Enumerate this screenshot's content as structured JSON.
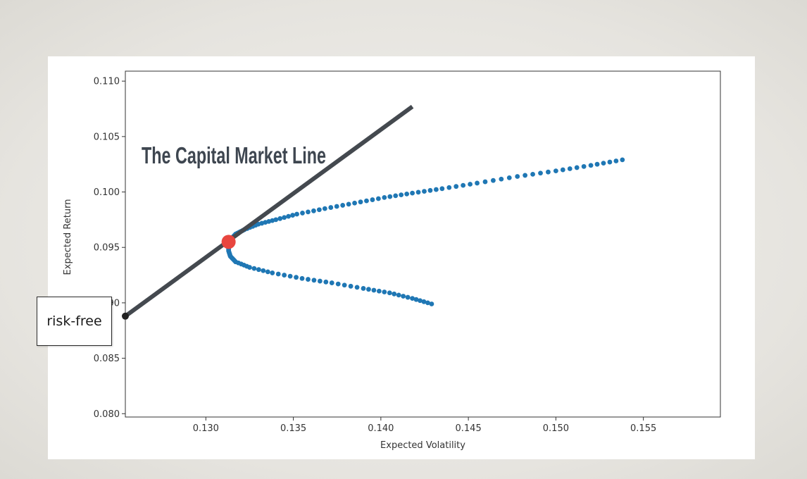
{
  "annotation": {
    "title": "The Capital Market Line",
    "riskfree_label": "risk-free"
  },
  "colors": {
    "frontier": "#1f77b4",
    "cml_line": "#44494f",
    "tangency": "#e8463f",
    "riskfree_point": "#222222"
  },
  "chart_data": {
    "type": "scatter",
    "xlabel": "Expected Volatility",
    "ylabel": "Expected Return",
    "xlim": [
      0.1254,
      0.1594
    ],
    "ylim": [
      0.0797,
      0.1109
    ],
    "xticks": [
      "0.130",
      "0.135",
      "0.140",
      "0.145",
      "0.150",
      "0.155"
    ],
    "yticks": [
      "0.080",
      "0.085",
      "0.090",
      "0.095",
      "0.100",
      "0.105",
      "0.110"
    ],
    "series": [
      {
        "kind": "efficient-frontier",
        "points": [
          [
            0.1313,
            0.0952
          ],
          [
            0.1314,
            0.0957
          ],
          [
            0.1317,
            0.0962
          ],
          [
            0.1322,
            0.0966
          ],
          [
            0.133,
            0.0971
          ],
          [
            0.134,
            0.0975
          ],
          [
            0.1352,
            0.098
          ],
          [
            0.1368,
            0.0985
          ],
          [
            0.1385,
            0.099
          ],
          [
            0.1402,
            0.0995
          ],
          [
            0.1418,
            0.0999
          ],
          [
            0.1435,
            0.1003
          ],
          [
            0.1455,
            0.1008
          ],
          [
            0.1478,
            0.1014
          ],
          [
            0.15,
            0.1019
          ],
          [
            0.152,
            0.1024
          ],
          [
            0.1538,
            0.1029
          ],
          [
            0.1313,
            0.0947
          ],
          [
            0.1314,
            0.0942
          ],
          [
            0.1317,
            0.0937
          ],
          [
            0.1325,
            0.0932
          ],
          [
            0.1338,
            0.0927
          ],
          [
            0.1355,
            0.0922
          ],
          [
            0.1372,
            0.0918
          ],
          [
            0.139,
            0.0913
          ],
          [
            0.1405,
            0.0909
          ],
          [
            0.1418,
            0.0904
          ],
          [
            0.1429,
            0.0899
          ]
        ]
      },
      {
        "kind": "capital-market-line",
        "points": [
          [
            0.1254,
            0.0888
          ],
          [
            0.1418,
            0.1077
          ]
        ]
      }
    ],
    "markers": [
      {
        "kind": "tangency-portfolio",
        "x": 0.1313,
        "y": 0.0955
      },
      {
        "kind": "risk-free",
        "x": 0.1254,
        "y": 0.0888
      }
    ]
  }
}
